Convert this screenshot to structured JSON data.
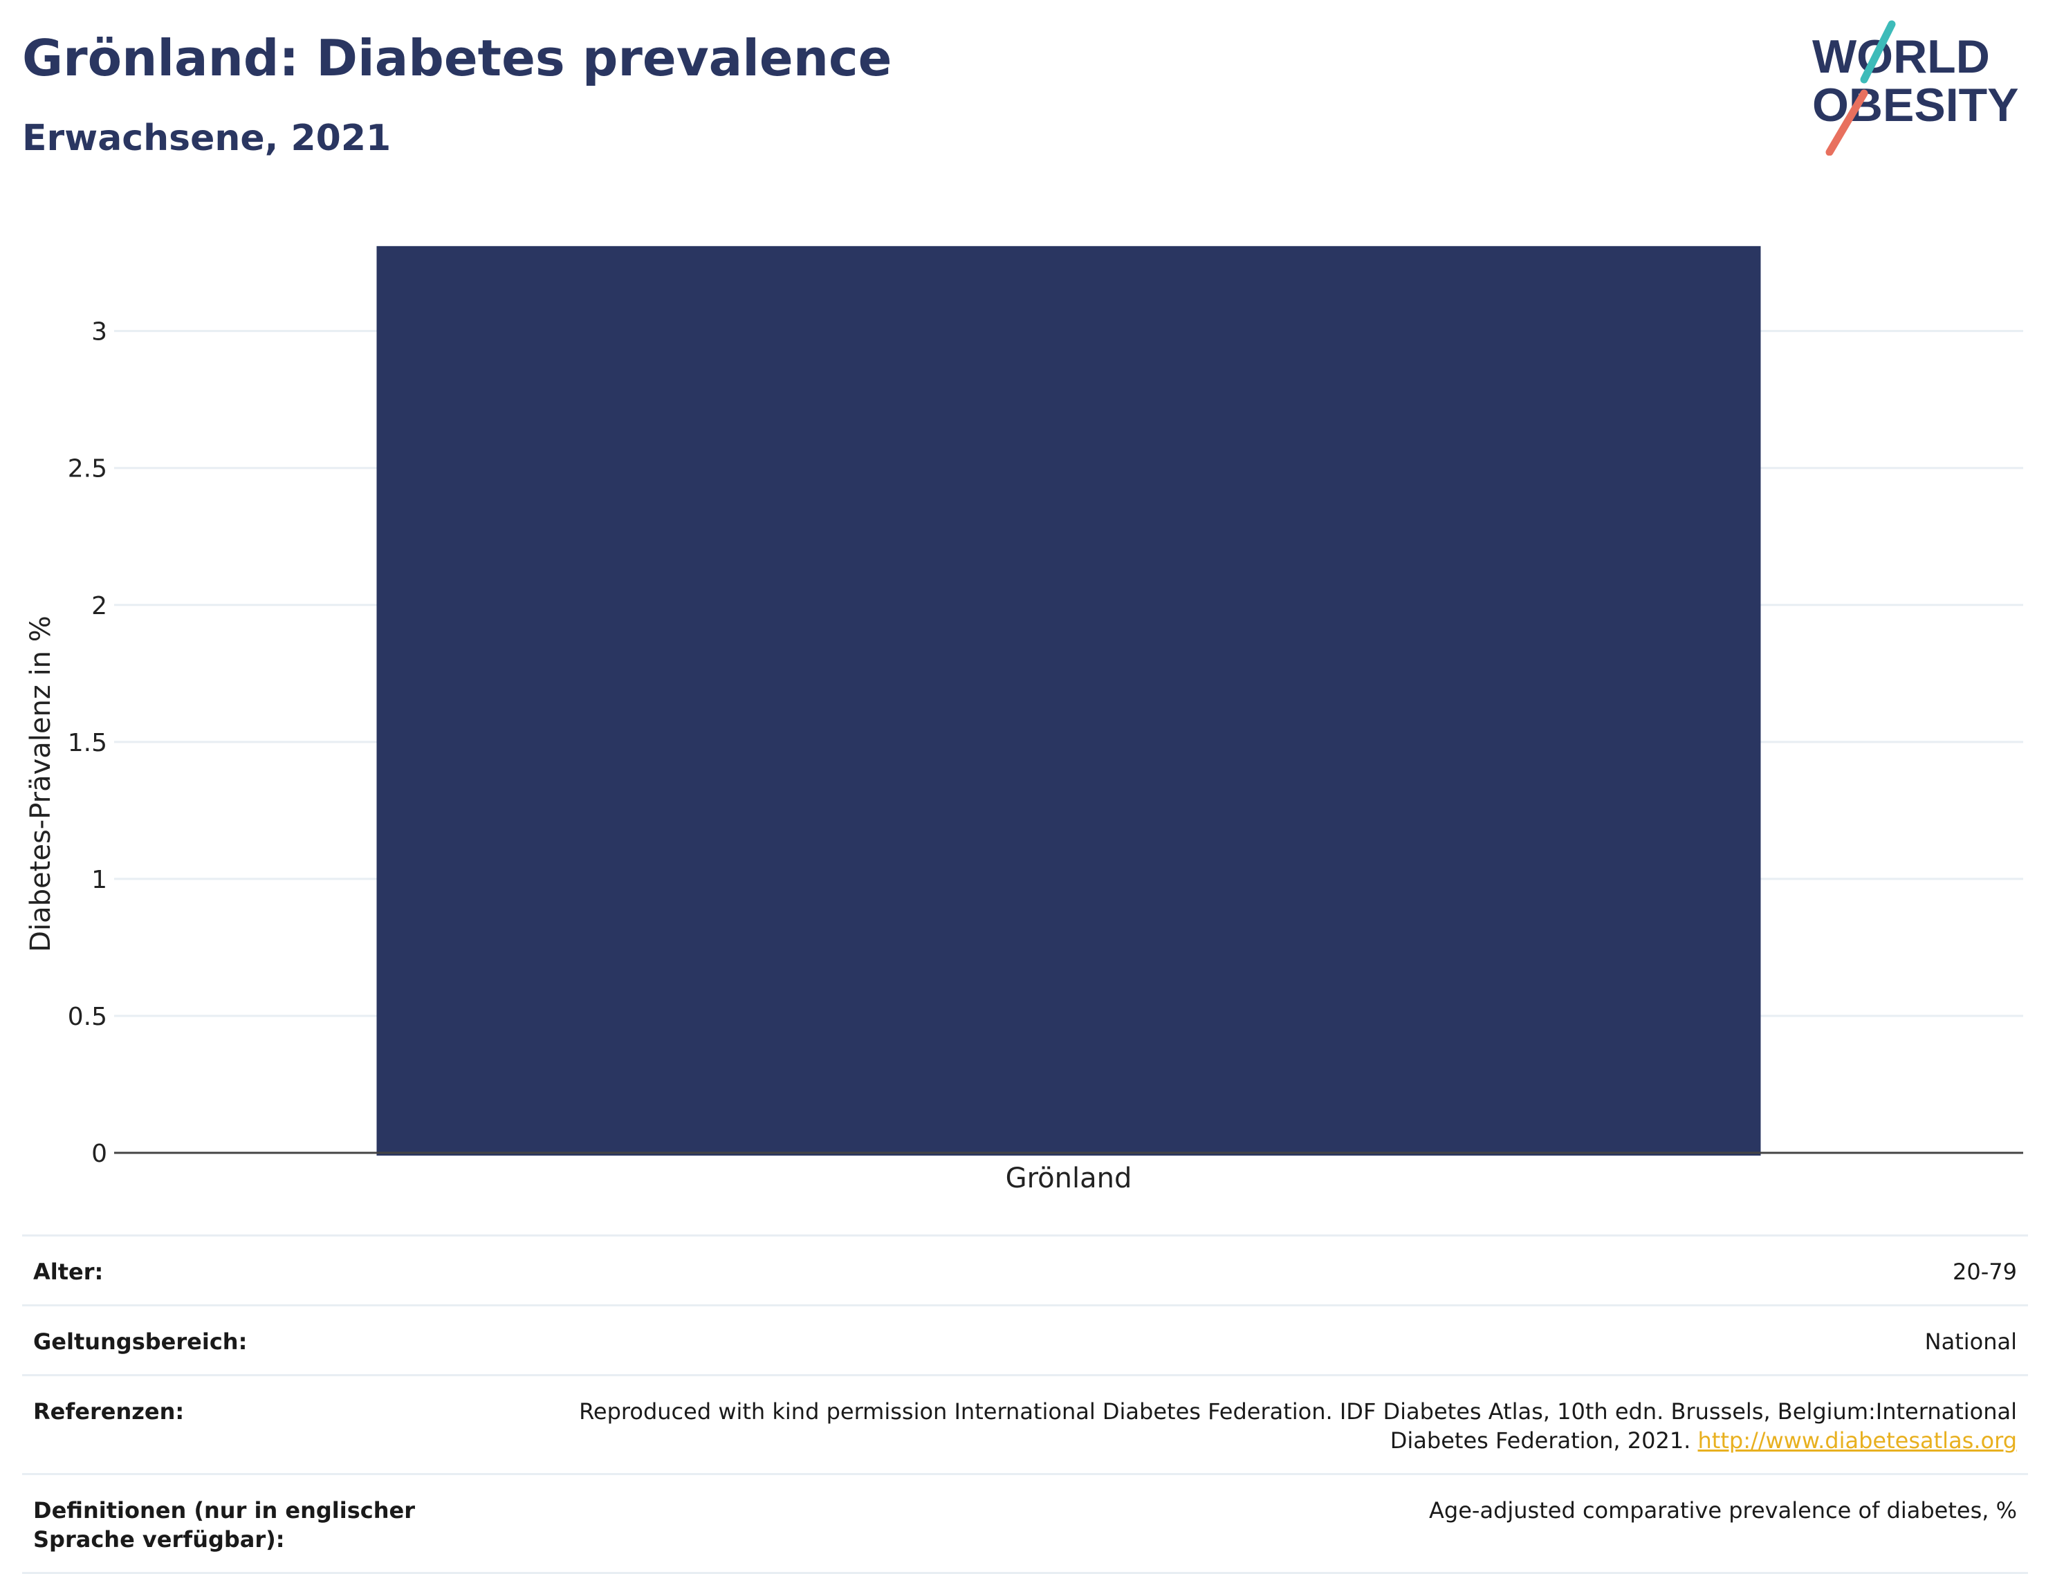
{
  "header": {
    "title": "Grönland: Diabetes prevalence",
    "subtitle": "Erwachsene, 2021"
  },
  "logo": {
    "line1": "WORLD",
    "line2": "OBESITY",
    "colors": {
      "text": "#2a3661",
      "accent_teal": "#3dbbb9",
      "accent_coral": "#e8705e"
    }
  },
  "chart_data": {
    "type": "bar",
    "categories": [
      "Grönland"
    ],
    "values": [
      3.31
    ],
    "title": "Grönland: Diabetes prevalence",
    "subtitle": "Erwachsene, 2021",
    "xlabel": "",
    "ylabel": "Diabetes-Prävalenz in %",
    "ylim": [
      0,
      3.35
    ],
    "yticks": [
      0,
      0.5,
      1,
      1.5,
      2,
      2.5,
      3
    ],
    "ytick_labels": [
      "0",
      "0.5",
      "1",
      "1.5",
      "2",
      "2.5",
      "3"
    ],
    "grid": true,
    "legend": "none",
    "colors": {
      "bar": "#2a3661",
      "grid": "#e8eef3",
      "axis": "#444444"
    }
  },
  "meta": {
    "rows": [
      {
        "label": "Alter:",
        "value": "20-79"
      },
      {
        "label": "Geltungsbereich:",
        "value": "National"
      },
      {
        "label": "Referenzen:",
        "value": "Reproduced with kind permission International Diabetes Federation.  IDF Diabetes Atlas, 10th edn. Brussels, Belgium:International Diabetes Federation, 2021. ",
        "link": "http://www.diabetesatlas.org"
      },
      {
        "label": "Definitionen (nur in englischer Sprache verfügbar):",
        "value": "Age-adjusted comparative prevalence of diabetes, %"
      }
    ]
  }
}
